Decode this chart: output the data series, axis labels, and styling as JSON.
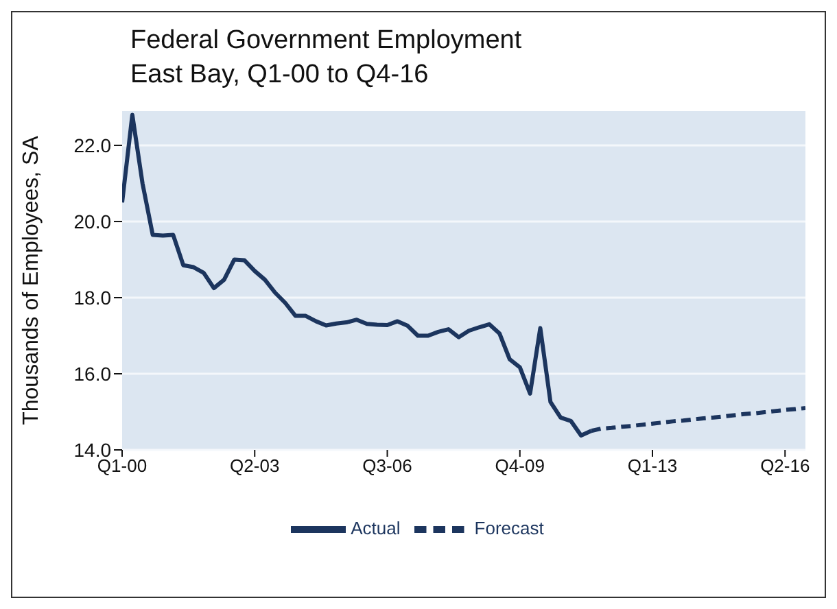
{
  "chart_data": {
    "type": "line",
    "title": "Federal Government Employment",
    "subtitle": "East Bay, Q1-00 to Q4-16",
    "ylabel": "Thousands of Employees, SA",
    "categories": [
      "Q1-00",
      null,
      null,
      null,
      null,
      null,
      null,
      null,
      null,
      null,
      null,
      null,
      null,
      "Q2-03",
      null,
      null,
      null,
      null,
      null,
      null,
      null,
      null,
      null,
      null,
      null,
      null,
      "Q3-06",
      null,
      null,
      null,
      null,
      null,
      null,
      null,
      null,
      null,
      null,
      null,
      null,
      "Q4-09",
      null,
      null,
      null,
      null,
      null,
      null,
      null,
      null,
      null,
      null,
      null,
      null,
      "Q1-13",
      null,
      null,
      null,
      null,
      null,
      null,
      null,
      null,
      null,
      null,
      null,
      null,
      "Q2-16",
      null,
      null
    ],
    "ylim": [
      14,
      22.9
    ],
    "yticks": [
      {
        "value": 14,
        "label": "14.0"
      },
      {
        "value": 16,
        "label": "16.0"
      },
      {
        "value": 18,
        "label": "18.0"
      },
      {
        "value": 20,
        "label": "20.0"
      },
      {
        "value": 22,
        "label": "22.0"
      }
    ],
    "grid": "y",
    "legend": "bottom",
    "marker": "none",
    "series": [
      {
        "name": "Actual",
        "color": "#1c355e",
        "line_style": "solid",
        "values": [
          20.5,
          22.8,
          21.0,
          19.65,
          19.63,
          19.65,
          18.85,
          18.8,
          18.65,
          18.25,
          18.47,
          19.0,
          18.98,
          18.7,
          18.47,
          18.13,
          17.86,
          17.52,
          17.52,
          17.38,
          17.27,
          17.32,
          17.35,
          17.42,
          17.31,
          17.29,
          17.28,
          17.38,
          17.26,
          17.0,
          17.0,
          17.1,
          17.17,
          16.96,
          17.13,
          17.22,
          17.3,
          17.06,
          16.38,
          16.17,
          15.48,
          17.2,
          15.26,
          14.85,
          14.76,
          14.38,
          14.5,
          null,
          null,
          null,
          null,
          null,
          null,
          null,
          null,
          null,
          null,
          null,
          null,
          null,
          null,
          null,
          null,
          null,
          null,
          null,
          null,
          null
        ]
      },
      {
        "name": "Forecast",
        "color": "#1c355e",
        "line_style": "dashed",
        "values": [
          null,
          null,
          null,
          null,
          null,
          null,
          null,
          null,
          null,
          null,
          null,
          null,
          null,
          null,
          null,
          null,
          null,
          null,
          null,
          null,
          null,
          null,
          null,
          null,
          null,
          null,
          null,
          null,
          null,
          null,
          null,
          null,
          null,
          null,
          null,
          null,
          null,
          null,
          null,
          null,
          null,
          null,
          null,
          null,
          null,
          null,
          14.5,
          14.56,
          14.58,
          14.61,
          14.63,
          14.66,
          14.69,
          14.72,
          14.75,
          14.77,
          14.8,
          14.83,
          14.85,
          14.88,
          14.91,
          14.94,
          14.96,
          14.99,
          15.02,
          15.05,
          15.07,
          15.1
        ]
      }
    ]
  }
}
